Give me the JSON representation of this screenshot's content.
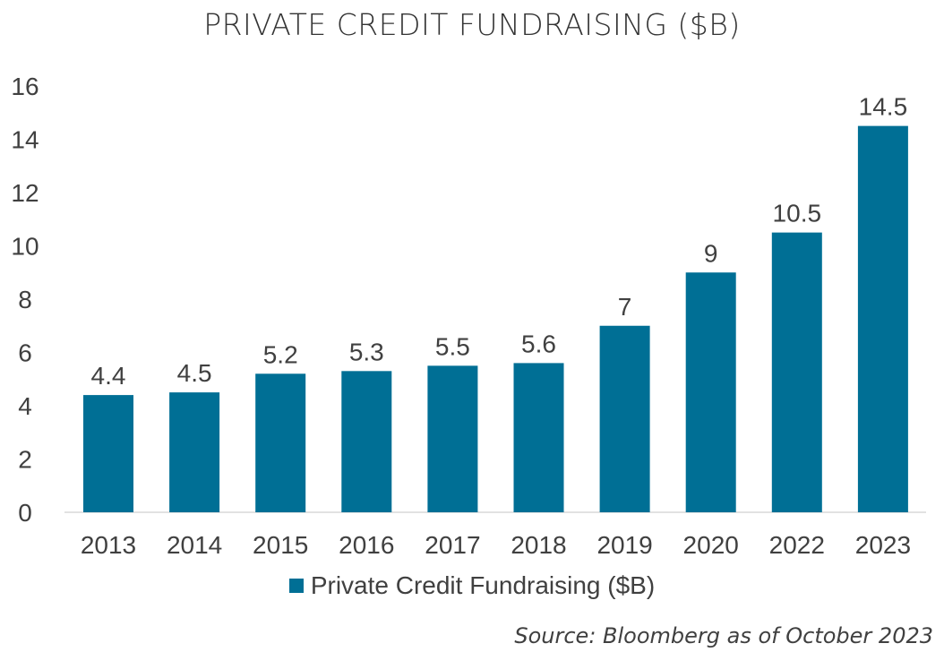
{
  "chart_data": {
    "type": "bar",
    "title": "PRIVATE CREDIT FUNDRAISING ($B)",
    "categories": [
      "2013",
      "2014",
      "2015",
      "2016",
      "2017",
      "2018",
      "2019",
      "2020",
      "2022",
      "2023"
    ],
    "series": [
      {
        "name": "Private Credit Fundraising ($B)",
        "values": [
          4.4,
          4.5,
          5.2,
          5.3,
          5.5,
          5.6,
          7,
          9,
          10.5,
          14.5
        ],
        "color": "#006f95"
      }
    ],
    "data_labels": [
      "4.4",
      "4.5",
      "5.2",
      "5.3",
      "5.5",
      "5.6",
      "7",
      "9",
      "10.5",
      "14.5"
    ],
    "ylim": [
      0,
      16
    ],
    "yticks": [
      0,
      2,
      4,
      6,
      8,
      10,
      12,
      14,
      16
    ],
    "grid": false,
    "legend": "bottom",
    "xlabel": "",
    "ylabel": ""
  },
  "source": "Source: Bloomberg as of October 2023"
}
